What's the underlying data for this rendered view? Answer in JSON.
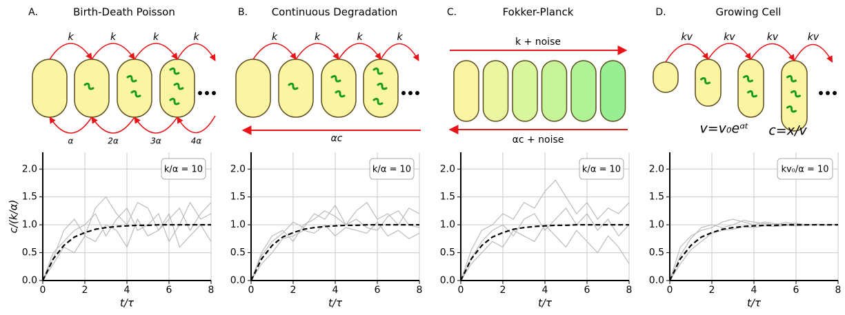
{
  "chart_data": [
    {
      "type": "line",
      "panel": "A.",
      "title": "Birth-Death Poisson",
      "diagram": {
        "top": [
          "k",
          "k",
          "k",
          "k"
        ],
        "bottom": [
          "α",
          "2α",
          "3α",
          "4α"
        ]
      },
      "annotation": "k/α = 10",
      "ylabel": "c/(k/α)",
      "xlabel": "t/τ",
      "x": [
        0,
        0.5,
        1,
        1.5,
        2,
        2.5,
        3,
        3.5,
        4,
        4.5,
        5,
        5.5,
        6,
        6.5,
        7,
        7.5,
        8
      ],
      "series": [
        {
          "color": "#bbbbbb",
          "values": [
            0,
            0.5,
            0.7,
            0.9,
            1.0,
            1.2,
            0.8,
            1.1,
            1.3,
            0.9,
            1.0,
            1.2,
            0.7,
            1.0,
            1.4,
            1.1,
            1.2
          ]
        },
        {
          "color": "#bbbbbb",
          "values": [
            0,
            0.3,
            0.6,
            0.5,
            0.8,
            0.7,
            1.0,
            0.9,
            0.6,
            1.1,
            0.8,
            0.9,
            1.2,
            0.6,
            0.8,
            1.0,
            0.7
          ]
        },
        {
          "color": "#bbbbbb",
          "values": [
            0,
            0.4,
            0.9,
            1.1,
            0.8,
            1.3,
            1.5,
            1.2,
            1.0,
            1.4,
            1.3,
            0.9,
            1.1,
            1.3,
            0.9,
            1.2,
            1.4
          ]
        },
        {
          "color": "#000000",
          "dashed": true,
          "values": [
            0,
            0.39,
            0.63,
            0.78,
            0.86,
            0.92,
            0.95,
            0.97,
            0.98,
            0.99,
            0.99,
            1.0,
            1.0,
            1.0,
            1.0,
            1.0,
            1.0
          ]
        }
      ],
      "xlim": [
        0,
        8
      ],
      "ylim": [
        0,
        2.3
      ],
      "xticks": [
        0,
        2,
        4,
        6,
        8
      ],
      "yticks": [
        {
          "value": 0,
          "label": "0.0"
        },
        {
          "value": 0.5,
          "label": "0.5"
        },
        {
          "value": 1,
          "label": "1.0"
        },
        {
          "value": 1.5,
          "label": "1.5"
        },
        {
          "value": 2,
          "label": "2.0"
        }
      ],
      "grid": true
    },
    {
      "type": "line",
      "panel": "B.",
      "title": "Continuous Degradation",
      "diagram": {
        "top": [
          "k",
          "k",
          "k",
          "k"
        ],
        "bottom": [
          "αc"
        ]
      },
      "annotation": "k/α = 10",
      "xlabel": "t/τ",
      "x": [
        0,
        0.5,
        1,
        1.5,
        2,
        2.5,
        3,
        3.5,
        4,
        4.5,
        5,
        5.5,
        6,
        6.5,
        7,
        7.5,
        8
      ],
      "series": [
        {
          "color": "#bbbbbb",
          "values": [
            0,
            0.45,
            0.7,
            0.85,
            1.05,
            0.95,
            1.2,
            1.1,
            1.35,
            1.0,
            1.25,
            1.4,
            1.1,
            1.2,
            1.0,
            1.3,
            1.2
          ]
        },
        {
          "color": "#bbbbbb",
          "values": [
            0,
            0.3,
            0.5,
            0.75,
            0.8,
            0.9,
            0.85,
            1.0,
            0.8,
            0.95,
            0.9,
            0.85,
            1.05,
            0.8,
            0.9,
            0.75,
            0.85
          ]
        },
        {
          "color": "#bbbbbb",
          "values": [
            0,
            0.5,
            0.8,
            0.9,
            0.7,
            1.0,
            1.1,
            1.25,
            1.15,
            1.0,
            1.1,
            0.95,
            0.9,
            1.15,
            1.25,
            1.0,
            0.95
          ]
        },
        {
          "color": "#000000",
          "dashed": true,
          "values": [
            0,
            0.39,
            0.63,
            0.78,
            0.86,
            0.92,
            0.95,
            0.97,
            0.98,
            0.99,
            0.99,
            1.0,
            1.0,
            1.0,
            1.0,
            1.0,
            1.0
          ]
        }
      ],
      "xlim": [
        0,
        8
      ],
      "ylim": [
        0,
        2.3
      ],
      "xticks": [
        0,
        2,
        4,
        6,
        8
      ],
      "yticks": [
        {
          "value": 0,
          "label": "0.0"
        },
        {
          "value": 0.5,
          "label": "0.5"
        },
        {
          "value": 1,
          "label": "1.0"
        },
        {
          "value": 1.5,
          "label": "1.5"
        },
        {
          "value": 2,
          "label": "2.0"
        }
      ],
      "grid": true
    },
    {
      "type": "line",
      "panel": "C.",
      "title": "Fokker-Planck",
      "diagram": {
        "top": [
          "k + noise"
        ],
        "bottom": [
          "αc + noise"
        ]
      },
      "annotation": "k/α = 10",
      "xlabel": "t/τ",
      "x": [
        0,
        0.5,
        1,
        1.5,
        2,
        2.5,
        3,
        3.5,
        4,
        4.5,
        5,
        5.5,
        6,
        6.5,
        7,
        7.5,
        8
      ],
      "series": [
        {
          "color": "#bbbbbb",
          "values": [
            0,
            0.55,
            0.9,
            1.0,
            1.2,
            1.1,
            1.4,
            1.3,
            1.6,
            1.8,
            1.5,
            1.2,
            1.4,
            1.1,
            1.3,
            1.2,
            1.4
          ]
        },
        {
          "color": "#bbbbbb",
          "values": [
            0,
            0.3,
            0.5,
            0.7,
            0.6,
            0.9,
            0.8,
            0.7,
            1.0,
            0.8,
            0.6,
            0.9,
            0.7,
            0.5,
            0.8,
            0.6,
            0.3
          ]
        },
        {
          "color": "#bbbbbb",
          "values": [
            0,
            0.4,
            0.7,
            0.9,
            1.0,
            0.8,
            1.1,
            1.2,
            0.9,
            1.1,
            1.3,
            1.0,
            1.2,
            0.9,
            1.1,
            0.8,
            1.0
          ]
        },
        {
          "color": "#000000",
          "dashed": true,
          "values": [
            0,
            0.39,
            0.63,
            0.78,
            0.86,
            0.92,
            0.95,
            0.97,
            0.98,
            0.99,
            0.99,
            1.0,
            1.0,
            1.0,
            1.0,
            1.0,
            1.0
          ]
        }
      ],
      "xlim": [
        0,
        8
      ],
      "ylim": [
        0,
        2.3
      ],
      "xticks": [
        0,
        2,
        4,
        6,
        8
      ],
      "yticks": [
        {
          "value": 0,
          "label": "0.0"
        },
        {
          "value": 0.5,
          "label": "0.5"
        },
        {
          "value": 1,
          "label": "1.0"
        },
        {
          "value": 1.5,
          "label": "1.5"
        },
        {
          "value": 2,
          "label": "2.0"
        }
      ],
      "grid": true
    },
    {
      "type": "line",
      "panel": "D.",
      "title": "Growing Cell",
      "diagram": {
        "top": [
          "kv",
          "kv",
          "kv",
          "kv"
        ],
        "notes": [
          "v=v₀eᵅᵗ",
          "c=x/v"
        ]
      },
      "annotation": "kv₀/α = 10",
      "xlabel": "t/τ",
      "x": [
        0,
        0.5,
        1,
        1.5,
        2,
        2.5,
        3,
        3.5,
        4,
        4.5,
        5,
        5.5,
        6,
        6.5,
        7,
        7.5,
        8
      ],
      "series": [
        {
          "color": "#bbbbbb",
          "values": [
            0,
            0.6,
            0.8,
            0.9,
            0.95,
            1.05,
            1.1,
            1.05,
            1.0,
            1.05,
            1.02,
            1.0,
            1.03,
            1.0,
            1.01,
            1.0,
            1.0
          ]
        },
        {
          "color": "#bbbbbb",
          "values": [
            0,
            0.3,
            0.55,
            0.7,
            0.85,
            0.9,
            0.92,
            0.97,
            0.95,
            0.98,
            0.97,
            0.99,
            0.98,
            0.99,
            1.0,
            0.99,
            1.0
          ]
        },
        {
          "color": "#bbbbbb",
          "values": [
            0,
            0.45,
            0.75,
            0.95,
            1.0,
            0.95,
            1.0,
            1.08,
            1.05,
            1.02,
            1.0,
            1.04,
            1.02,
            1.0,
            1.01,
            1.0,
            1.01
          ]
        },
        {
          "color": "#000000",
          "dashed": true,
          "values": [
            0,
            0.39,
            0.63,
            0.78,
            0.86,
            0.92,
            0.95,
            0.97,
            0.98,
            0.99,
            0.99,
            1.0,
            1.0,
            1.0,
            1.0,
            1.0,
            1.0
          ]
        }
      ],
      "xlim": [
        0,
        8
      ],
      "ylim": [
        0,
        2.3
      ],
      "xticks": [
        0,
        2,
        4,
        6,
        8
      ],
      "yticks": [
        {
          "value": 0,
          "label": "0.0"
        },
        {
          "value": 0.5,
          "label": "0.5"
        },
        {
          "value": 1,
          "label": "1.0"
        },
        {
          "value": 1.5,
          "label": "1.5"
        },
        {
          "value": 2,
          "label": "2.0"
        }
      ],
      "grid": true
    }
  ]
}
